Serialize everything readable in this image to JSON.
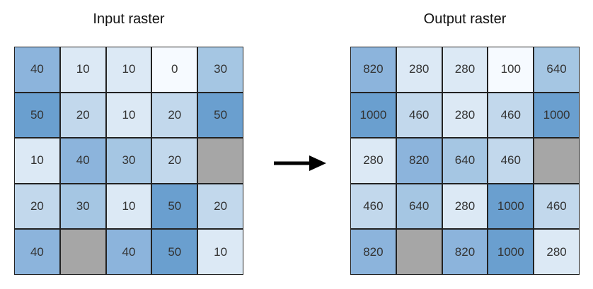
{
  "input": {
    "title": "Input raster",
    "values": [
      [
        40,
        10,
        10,
        0,
        30
      ],
      [
        50,
        20,
        10,
        20,
        50
      ],
      [
        10,
        40,
        30,
        20,
        null
      ],
      [
        20,
        30,
        10,
        50,
        20
      ],
      [
        40,
        null,
        40,
        50,
        10
      ]
    ]
  },
  "output": {
    "title": "Output raster",
    "values": [
      [
        820,
        280,
        280,
        100,
        640
      ],
      [
        1000,
        460,
        280,
        460,
        1000
      ],
      [
        280,
        820,
        640,
        460,
        null
      ],
      [
        460,
        640,
        280,
        1000,
        460
      ],
      [
        820,
        null,
        820,
        1000,
        280
      ]
    ]
  },
  "colors": {
    "0": "#f6faff",
    "10": "#dce9f5",
    "20": "#c2d8ec",
    "30": "#a5c6e3",
    "40": "#8cb4dc",
    "50": "#6a9fcf",
    "nodata": "#a6a6a6"
  },
  "mapping": {
    "0": "100",
    "10": "280",
    "20": "460",
    "30": "640",
    "40": "820",
    "50": "1000"
  }
}
